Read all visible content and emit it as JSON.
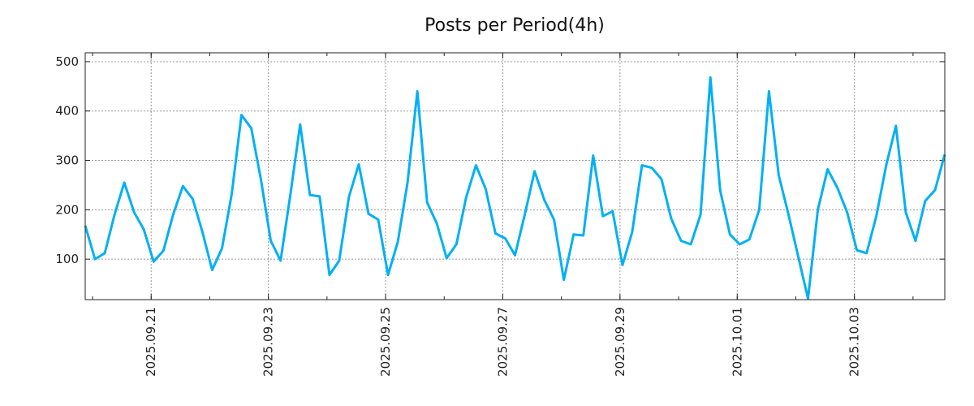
{
  "chart_data": {
    "type": "line",
    "title": "Posts per Period(4h)",
    "xlabel": "",
    "ylabel": "",
    "x_start": "2025-09-19T21:00",
    "step_hours": 4,
    "ylim": [
      18,
      518
    ],
    "yticks": [
      100,
      200,
      300,
      400,
      500
    ],
    "ytick_labels": [
      "100",
      "200",
      "300",
      "400",
      "500"
    ],
    "xticks_days_from_start": [
      1.125,
      3.125,
      5.125,
      7.125,
      9.125,
      11.125,
      13.125
    ],
    "xtick_labels": [
      "2025.09.21",
      "2025.09.23",
      "2025.09.25",
      "2025.09.27",
      "2025.09.29",
      "2025.10.01",
      "2025.10.03"
    ],
    "grid": true,
    "line_color": "#00b0f6",
    "series": [
      {
        "name": "posts",
        "values": [
          168,
          100,
          112,
          190,
          255,
          195,
          160,
          95,
          117,
          190,
          248,
          222,
          155,
          78,
          122,
          232,
          392,
          365,
          260,
          137,
          97,
          230,
          373,
          230,
          227,
          68,
          97,
          226,
          292,
          192,
          180,
          68,
          135,
          255,
          440,
          215,
          172,
          102,
          130,
          225,
          290,
          242,
          152,
          142,
          108,
          190,
          278,
          220,
          180,
          58,
          150,
          148,
          310,
          187,
          197,
          88,
          155,
          290,
          285,
          262,
          182,
          137,
          130,
          190,
          468,
          240,
          150,
          130,
          140,
          200,
          440,
          270,
          190,
          105,
          20,
          200,
          282,
          245,
          195,
          118,
          112,
          188,
          290,
          370,
          195,
          137,
          218,
          240,
          312
        ]
      }
    ]
  }
}
